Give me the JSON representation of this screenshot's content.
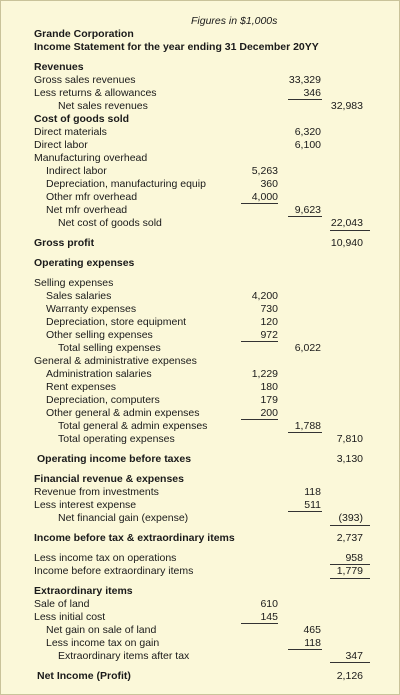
{
  "note": "Figures in $1,000s",
  "company": "Grande Corporation",
  "statement_title": "Income Statement for the year ending 31 December 20YY",
  "rows": [
    {
      "t": 60,
      "label": "Revenues",
      "indent": 0,
      "bold": true
    },
    {
      "t": 73,
      "label": "Gross sales revenues",
      "indent": 0,
      "c2": "33,329"
    },
    {
      "t": 86,
      "label": "Less returns & allowances",
      "indent": 0,
      "c2": "346"
    },
    {
      "t": 99,
      "label": "Net sales revenues",
      "indent": 2,
      "c3": "32,983"
    },
    {
      "t": 112,
      "label": "Cost of goods sold",
      "indent": 0,
      "bold": true
    },
    {
      "t": 125,
      "label": "Direct materials",
      "indent": 0,
      "c2": "6,320"
    },
    {
      "t": 138,
      "label": "Direct labor",
      "indent": 0,
      "c2": "6,100"
    },
    {
      "t": 151,
      "label": "Manufacturing overhead",
      "indent": 0
    },
    {
      "t": 164,
      "label": "Indirect labor",
      "indent": 1,
      "c1": "5,263"
    },
    {
      "t": 177,
      "label": "Depreciation, manufacturing equip",
      "indent": 1,
      "c1": "360"
    },
    {
      "t": 190,
      "label": "Other mfr overhead",
      "indent": 1,
      "c1": "4,000"
    },
    {
      "t": 203,
      "label": "Net mfr overhead",
      "indent": 1,
      "c2": "9,623"
    },
    {
      "t": 216,
      "label": "Net cost of goods sold",
      "indent": 2,
      "c3": "22,043"
    },
    {
      "t": 236,
      "label": "Gross profit",
      "indent": 0,
      "bold": true,
      "c3": "10,940"
    },
    {
      "t": 256,
      "label": "Operating expenses",
      "indent": 0,
      "bold": true
    },
    {
      "t": 276,
      "label": "Selling expenses",
      "indent": 0
    },
    {
      "t": 289,
      "label": "Sales salaries",
      "indent": 1,
      "c1": "4,200"
    },
    {
      "t": 302,
      "label": "Warranty expenses",
      "indent": 1,
      "c1": "730"
    },
    {
      "t": 315,
      "label": "Depreciation, store equipment",
      "indent": 1,
      "c1": "120"
    },
    {
      "t": 328,
      "label": "Other selling expenses",
      "indent": 1,
      "c1": "972"
    },
    {
      "t": 341,
      "label": "Total selling expenses",
      "indent": 2,
      "c2": "6,022"
    },
    {
      "t": 354,
      "label": "General & administrative expenses",
      "indent": 0
    },
    {
      "t": 367,
      "label": "Administration salaries",
      "indent": 1,
      "c1": "1,229"
    },
    {
      "t": 380,
      "label": "Rent expenses",
      "indent": 1,
      "c1": "180"
    },
    {
      "t": 393,
      "label": "Depreciation, computers",
      "indent": 1,
      "c1": "179"
    },
    {
      "t": 406,
      "label": "Other general & admin expenses",
      "indent": 1,
      "c1": "200"
    },
    {
      "t": 419,
      "label": "Total general & admin expenses",
      "indent": 2,
      "c2": "1,788"
    },
    {
      "t": 432,
      "label": "Total operating expenses",
      "indent": 2,
      "c3": "7,810"
    },
    {
      "t": 452,
      "label": "Operating income before taxes",
      "indent": 0.35,
      "bold": true,
      "c3": "3,130"
    },
    {
      "t": 472,
      "label": "Financial revenue & expenses",
      "indent": 0,
      "bold": true
    },
    {
      "t": 485,
      "label": "Revenue from investments",
      "indent": 0,
      "c2": "118"
    },
    {
      "t": 498,
      "label": "Less interest expense",
      "indent": 0,
      "c2": "511"
    },
    {
      "t": 511,
      "label": "Net financial gain (expense)",
      "indent": 2,
      "c3": "(393)"
    },
    {
      "t": 531,
      "label": "Income before tax & extraordinary items",
      "indent": 0,
      "bold": true,
      "clip": true,
      "c3": "2,737"
    },
    {
      "t": 551,
      "label": "Less income tax on operations",
      "indent": 0,
      "c3": "958"
    },
    {
      "t": 564,
      "label": "Income before extraordinary items",
      "indent": 0,
      "c3": "1,779"
    },
    {
      "t": 584,
      "label": "Extraordinary items",
      "indent": 0,
      "bold": true
    },
    {
      "t": 597,
      "label": "Sale of land",
      "indent": 0,
      "c1": "610"
    },
    {
      "t": 610,
      "label": "Less initial cost",
      "indent": 0,
      "c1": "145"
    },
    {
      "t": 623,
      "label": "Net gain on sale of land",
      "indent": 1,
      "c2": "465"
    },
    {
      "t": 636,
      "label": "Less income tax on gain",
      "indent": 1,
      "c2": "118"
    },
    {
      "t": 649,
      "label": "Extraordinary items after tax",
      "indent": 2,
      "c3": "347"
    },
    {
      "t": 669,
      "label": "Net Income (Profit)",
      "indent": 0.35,
      "bold": true,
      "c3": "2,126"
    }
  ]
}
